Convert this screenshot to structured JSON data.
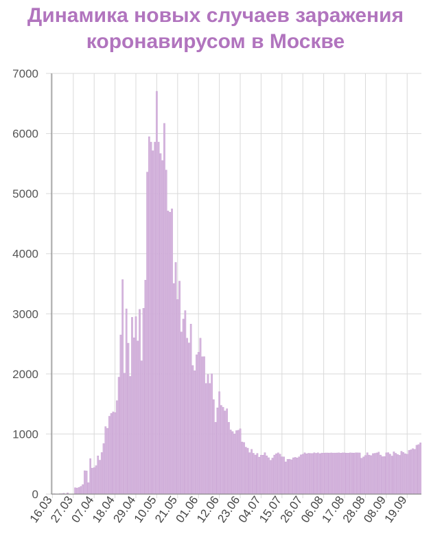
{
  "title_lines": [
    "Динамика новых случаев заражения",
    "коронавирусом в Москве"
  ],
  "colors": {
    "title": "#b174be",
    "bar_fill": "#d5b5dd",
    "bar_stroke": "#c39bcf",
    "grid": "#d9d9d9",
    "axis": "#888888"
  },
  "chart_data": {
    "type": "bar",
    "title": "Динамика новых случаев заражения коронавирусом в Москве",
    "xlabel": "",
    "ylabel": "",
    "ylim": [
      0,
      7000
    ],
    "yticks": [
      0,
      1000,
      2000,
      3000,
      4000,
      5000,
      6000,
      7000
    ],
    "xticks": [
      "16.03",
      "27.03",
      "07.04",
      "18.04",
      "29.04",
      "10.05",
      "21.05",
      "01.06",
      "12.06",
      "23.06",
      "04.07",
      "15.07",
      "26.07",
      "06.08",
      "17.08",
      "28.08",
      "08.09",
      "19.09"
    ],
    "xtick_interval_days": 11,
    "first_day": "16.03",
    "grid": true,
    "legend": "none",
    "values": [
      1,
      6,
      0,
      1,
      7,
      7,
      15,
      3,
      22,
      1,
      1,
      2,
      107,
      102,
      113,
      130,
      159,
      389,
      387,
      190,
      591,
      433,
      440,
      474,
      637,
      565,
      692,
      841,
      1124,
      1096,
      1296,
      1343,
      1370,
      1358,
      1555,
      1947,
      2649,
      3570,
      2013,
      3083,
      2512,
      1959,
      2942,
      2602,
      2953,
      2548,
      3075,
      2219,
      3093,
      3561,
      5358,
      5948,
      5858,
      5714,
      5858,
      6703,
      5858,
      5667,
      5551,
      6169,
      5392,
      4712,
      4691,
      4748,
      3505,
      3855,
      3238,
      3545,
      2699,
      2913,
      3054,
      2595,
      2516,
      2830,
      2140,
      2054,
      2319,
      2360,
      2595,
      2286,
      2288,
      1842,
      1992,
      1842,
      2001,
      1572,
      1195,
      1436,
      1705,
      1477,
      1445,
      1385,
      1421,
      1195,
      1068,
      1041,
      1000,
      1057,
      1063,
      1087,
      868,
      860,
      781,
      765,
      690,
      746,
      680,
      651,
      678,
      616,
      648,
      649,
      690,
      638,
      606,
      563,
      600,
      650,
      673,
      687,
      666,
      621,
      620,
      537,
      579,
      581,
      572,
      605,
      612,
      603,
      621,
      654,
      663,
      688,
      672,
      680,
      678,
      676,
      689,
      680,
      688,
      674,
      684,
      683,
      685,
      685,
      684,
      686,
      684,
      684,
      685,
      687,
      683,
      687,
      686,
      683,
      683,
      687,
      685,
      684,
      688,
      687,
      686,
      598,
      619,
      644,
      689,
      650,
      641,
      675,
      679,
      686,
      699,
      650,
      624,
      626,
      687,
      691,
      666,
      634,
      704,
      680,
      659,
      646,
      713,
      695,
      673,
      663,
      729,
      738,
      756,
      745,
      814,
      824,
      855
    ]
  }
}
